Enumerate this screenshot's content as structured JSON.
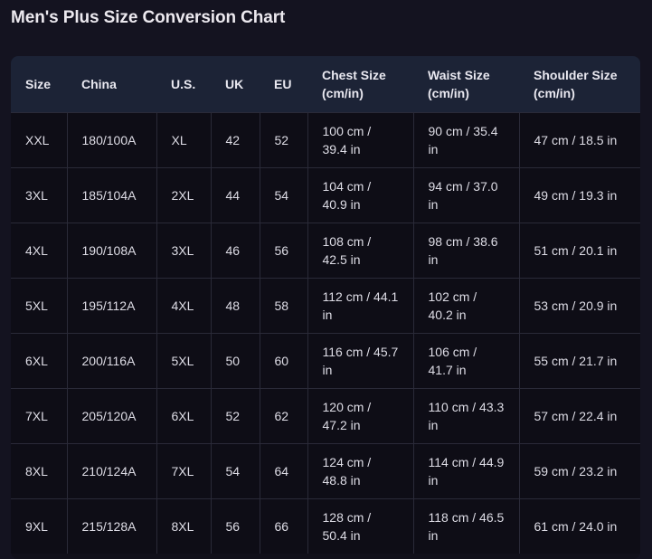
{
  "page_title": "Men's Plus Size Conversion Chart",
  "table": {
    "headers": [
      "Size",
      "China",
      "U.S.",
      "UK",
      "EU",
      "Chest Size (cm/in)",
      "Waist Size (cm/in)",
      "Shoulder Size (cm/in)"
    ],
    "rows": [
      [
        "XXL",
        "180/100A",
        "XL",
        "42",
        "52",
        "100 cm / 39.4 in",
        "90 cm / 35.4 in",
        "47 cm / 18.5 in"
      ],
      [
        "3XL",
        "185/104A",
        "2XL",
        "44",
        "54",
        "104 cm / 40.9 in",
        "94 cm / 37.0 in",
        "49 cm / 19.3 in"
      ],
      [
        "4XL",
        "190/108A",
        "3XL",
        "46",
        "56",
        "108 cm / 42.5 in",
        "98 cm / 38.6 in",
        "51 cm / 20.1 in"
      ],
      [
        "5XL",
        "195/112A",
        "4XL",
        "48",
        "58",
        "112 cm / 44.1 in",
        "102 cm / 40.2 in",
        "53 cm / 20.9 in"
      ],
      [
        "6XL",
        "200/116A",
        "5XL",
        "50",
        "60",
        "116 cm / 45.7 in",
        "106 cm / 41.7 in",
        "55 cm / 21.7 in"
      ],
      [
        "7XL",
        "205/120A",
        "6XL",
        "52",
        "62",
        "120 cm / 47.2 in",
        "110 cm / 43.3 in",
        "57 cm / 22.4 in"
      ],
      [
        "8XL",
        "210/124A",
        "7XL",
        "54",
        "64",
        "124 cm / 48.8 in",
        "114 cm / 44.9 in",
        "59 cm / 23.2 in"
      ],
      [
        "9XL",
        "215/128A",
        "8XL",
        "56",
        "66",
        "128 cm / 50.4 in",
        "118 cm / 46.5 in",
        "61 cm / 24.0 in"
      ]
    ]
  }
}
